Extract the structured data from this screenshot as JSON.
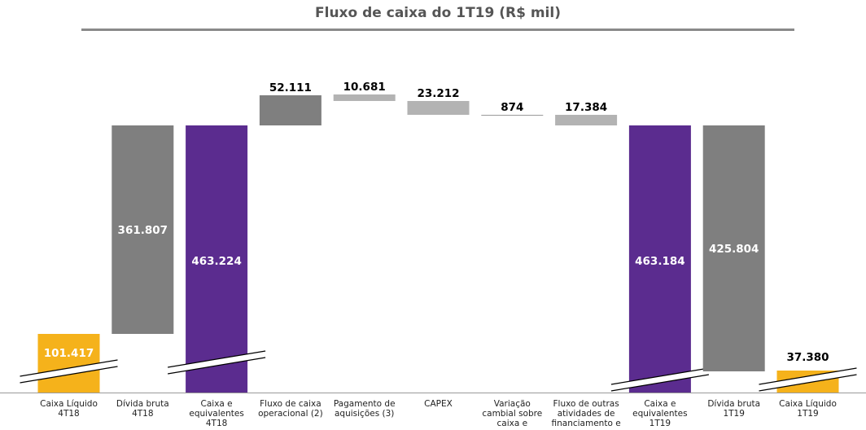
{
  "chart_data": {
    "type": "bar",
    "title": "Fluxo de caixa do 1T19 (R$ mil)",
    "categories": [
      "Caixa Líquido 4T18",
      "Dívida bruta 4T18",
      "Caixa e equivalentes 4T18",
      "Fluxo de caixa operacional (2)",
      "Pagamento de aquisições (3)",
      "CAPEX",
      "Variação cambial sobre caixa e",
      "Fluxo de outras atividades de financiamento e",
      "Caixa e equivalentes 1T19",
      "Dívida bruta 1T19",
      "Caixa Líquido 1T19"
    ],
    "category_lines": [
      [
        "Caixa Líquido",
        "4T18"
      ],
      [
        "Dívida bruta",
        "4T18"
      ],
      [
        "Caixa e",
        "equivalentes",
        "4T18"
      ],
      [
        "Fluxo de caixa",
        "operacional (2)"
      ],
      [
        "Pagamento de",
        "aquisições (3)"
      ],
      [
        "CAPEX"
      ],
      [
        "Variação",
        "cambial sobre",
        "caixa e"
      ],
      [
        "Fluxo de outras",
        "atividades de",
        "financiamento e"
      ],
      [
        "Caixa e",
        "equivalentes",
        "1T19"
      ],
      [
        "Dívida bruta",
        "1T19"
      ],
      [
        "Caixa Líquido",
        "1T19"
      ]
    ],
    "values": [
      101417,
      361807,
      463224,
      52111,
      10681,
      23212,
      874,
      17384,
      463184,
      425804,
      37380
    ],
    "labels": [
      "101.417",
      "361.807",
      "463.224",
      "52.111",
      "10.681",
      "23.212",
      "874",
      "17.384",
      "463.184",
      "425.804",
      "37.380"
    ],
    "bar_kind": [
      "total",
      "total",
      "total",
      "delta",
      "delta",
      "delta",
      "delta",
      "delta",
      "total",
      "total",
      "total"
    ],
    "axis_break": [
      true,
      false,
      true,
      false,
      false,
      false,
      false,
      false,
      true,
      false,
      true
    ],
    "label_inside": [
      true,
      true,
      true,
      false,
      false,
      false,
      false,
      false,
      true,
      true,
      false
    ],
    "colors": [
      "#f5b21b",
      "#7f7f7f",
      "#5b2c8f",
      "#7f7f7f",
      "#b3b3b3",
      "#b3b3b3",
      "#9a9a9a",
      "#b3b3b3",
      "#5b2c8f",
      "#7f7f7f",
      "#f5b21b"
    ],
    "grid": false,
    "legend": "none"
  }
}
